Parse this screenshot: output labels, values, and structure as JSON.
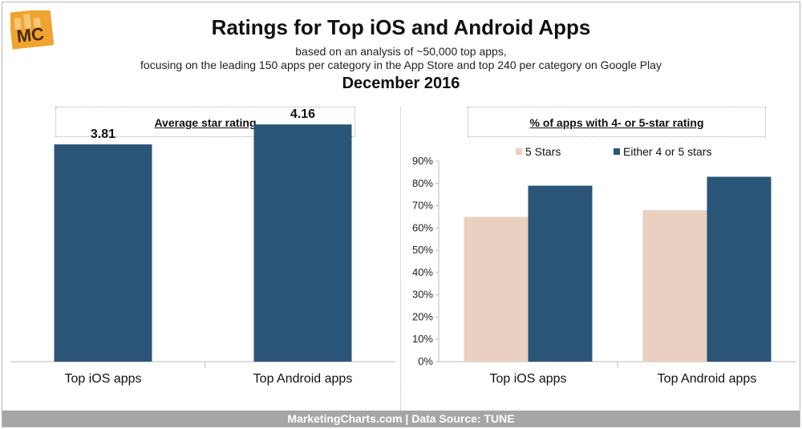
{
  "title": "Ratings for Top iOS and Android Apps",
  "subtitle_line1": "based on an analysis of ~50,000 top apps,",
  "subtitle_line2": "focusing on the leading 150 apps per category in the App Store and top 240 per category on Google Play",
  "date": "December 2016",
  "logo_text": "MC",
  "footer": "MarketingCharts.com | Data Source: TUNE",
  "colors": {
    "dark_blue": "#2a5577",
    "beige": "#e9d0c0",
    "footer_bg": "#a6a6a6",
    "logo_orange": "#f0a430"
  },
  "chart_data": [
    {
      "type": "bar",
      "title": "Average star rating",
      "categories": [
        "Top iOS apps",
        "Top Android apps"
      ],
      "values": [
        3.81,
        4.16
      ],
      "value_labels": [
        "3.81",
        "4.16"
      ],
      "ylim": [
        0,
        5
      ],
      "grid": false,
      "color": "#2a5577"
    },
    {
      "type": "bar",
      "title": "% of apps with 4- or 5-star rating",
      "categories": [
        "Top iOS apps",
        "Top Android apps"
      ],
      "series": [
        {
          "name": "5 Stars",
          "values": [
            65,
            68
          ],
          "color": "#e9d0c0"
        },
        {
          "name": "Either 4 or 5 stars",
          "values": [
            79,
            83
          ],
          "color": "#2a5577"
        }
      ],
      "yticks": [
        "0%",
        "10%",
        "20%",
        "30%",
        "40%",
        "50%",
        "60%",
        "70%",
        "80%",
        "90%"
      ],
      "ylim": [
        0,
        90
      ],
      "grid": false,
      "legend": "top"
    }
  ]
}
